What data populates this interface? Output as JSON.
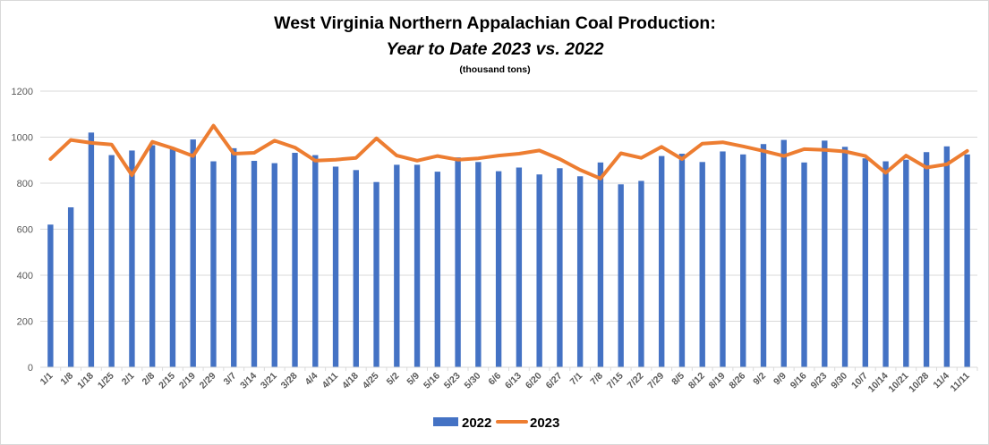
{
  "chart_data": {
    "type": "bar+line",
    "title": "West Virginia Northern Appalachian Coal Production:",
    "title_line2": "Year to Date 2023 vs. 2022",
    "subtitle": "(thousand tons)",
    "xlabel": "",
    "ylabel": "",
    "ylim": [
      0,
      1200
    ],
    "yticks": [
      0,
      200,
      400,
      600,
      800,
      1000,
      1200
    ],
    "grid": true,
    "legend_position": "bottom",
    "categories": [
      "1/1",
      "1/8",
      "1/18",
      "1/25",
      "2/1",
      "2/8",
      "2/15",
      "2/19",
      "2/29",
      "3/7",
      "3/14",
      "3/21",
      "3/28",
      "4/4",
      "4/11",
      "4/18",
      "4/25",
      "5/2",
      "5/9",
      "5/16",
      "5/23",
      "5/30",
      "6/6",
      "6/13",
      "6/20",
      "6/27",
      "7/1",
      "7/8",
      "7/15",
      "7/22",
      "7/29",
      "8/5",
      "8/12",
      "8/19",
      "8/26",
      "9/2",
      "9/9",
      "9/16",
      "9/23",
      "9/30",
      "10/7",
      "10/14",
      "10/21",
      "10/28",
      "11/4",
      "11/11"
    ],
    "series": [
      {
        "name": "2022",
        "type": "bar",
        "color": "#4472c4",
        "values": [
          620,
          695,
          1020,
          922,
          942,
          965,
          955,
          990,
          895,
          952,
          897,
          887,
          932,
          922,
          872,
          857,
          805,
          880,
          880,
          850,
          912,
          892,
          852,
          868,
          838,
          865,
          830,
          890,
          795,
          810,
          918,
          928,
          892,
          938,
          925,
          970,
          988,
          890,
          985,
          958,
          908,
          895,
          902,
          935,
          960,
          925
        ]
      },
      {
        "name": "2023",
        "type": "line",
        "color": "#ed7d31",
        "values": [
          905,
          988,
          975,
          968,
          835,
          980,
          952,
          918,
          1050,
          928,
          932,
          985,
          955,
          898,
          902,
          910,
          995,
          920,
          898,
          918,
          902,
          908,
          920,
          928,
          942,
          905,
          858,
          820,
          930,
          910,
          958,
          905,
          972,
          978,
          960,
          940,
          918,
          948,
          945,
          938,
          918,
          845,
          920,
          868,
          882,
          940
        ]
      }
    ]
  }
}
